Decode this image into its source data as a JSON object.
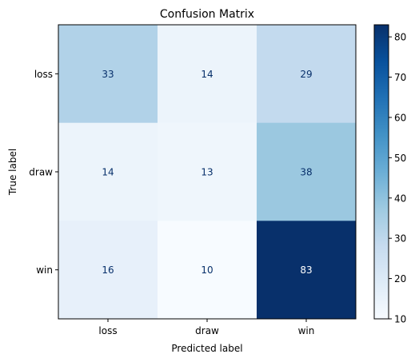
{
  "chart_data": {
    "type": "heatmap",
    "title": "Confusion Matrix",
    "xlabel": "Predicted label",
    "ylabel": "True label",
    "x_categories": [
      "loss",
      "draw",
      "win"
    ],
    "y_categories": [
      "loss",
      "draw",
      "win"
    ],
    "values": [
      [
        33,
        14,
        29
      ],
      [
        14,
        13,
        38
      ],
      [
        16,
        10,
        83
      ]
    ],
    "colormap": "Blues",
    "vmin": 10,
    "vmax": 83,
    "colorbar_ticks": [
      "10",
      "20",
      "30",
      "40",
      "50",
      "60",
      "70",
      "80"
    ],
    "text_color_light": "#ffffff",
    "text_color_dark": "#08306b"
  }
}
